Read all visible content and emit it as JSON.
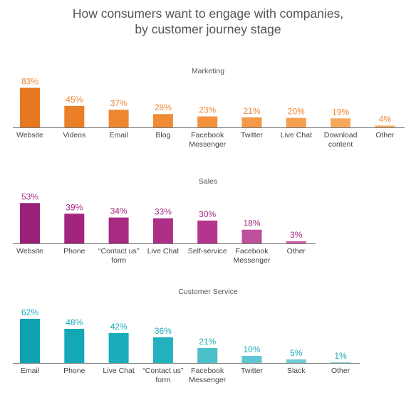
{
  "title_lines": [
    "How consumers want to engage with companies,",
    "by customer journey stage"
  ],
  "chart_data": [
    {
      "type": "bar",
      "title": "Marketing",
      "categories": [
        "Website",
        "Videos",
        "Email",
        "Blog",
        "Facebook\nMessenger",
        "Twitter",
        "Live Chat",
        "Download\ncontent",
        "Other"
      ],
      "values": [
        83,
        45,
        37,
        28,
        23,
        21,
        20,
        19,
        4
      ],
      "value_labels": [
        "83%",
        "45%",
        "37%",
        "28%",
        "23%",
        "21%",
        "20%",
        "19%",
        "4%"
      ],
      "colors": [
        "#e87722",
        "#eb7f28",
        "#ee8530",
        "#f08a37",
        "#f2913f",
        "#f49947",
        "#f6a050",
        "#f7a85b",
        "#f9b26a"
      ],
      "label_color": "#ee8530",
      "xlabel": "",
      "ylabel": "",
      "ylim": [
        0,
        100
      ],
      "grid": false,
      "legend": "none"
    },
    {
      "type": "bar",
      "title": "Sales",
      "categories": [
        "Website",
        "Phone",
        "“Contact us”\nform",
        "Live Chat",
        "Self-service",
        "Facebook\nMessenger",
        "Other"
      ],
      "values": [
        53,
        39,
        34,
        33,
        30,
        18,
        3
      ],
      "value_labels": [
        "53%",
        "39%",
        "34%",
        "33%",
        "30%",
        "18%",
        "3%"
      ],
      "colors": [
        "#9a2179",
        "#a1257e",
        "#a72a83",
        "#ad2f88",
        "#b3358e",
        "#bd4f9b",
        "#c766a8"
      ],
      "label_color": "#a72a83",
      "xlabel": "",
      "ylabel": "",
      "ylim": [
        0,
        100
      ],
      "grid": false,
      "legend": "none"
    },
    {
      "type": "bar",
      "title": "Customer Service",
      "categories": [
        "Email",
        "Phone",
        "Live Chat",
        "“Contact us”\nform",
        "Facebook\nMessenger",
        "Twitter",
        "Slack",
        "Other"
      ],
      "values": [
        62,
        48,
        42,
        36,
        21,
        10,
        5,
        1
      ],
      "value_labels": [
        "62%",
        "48%",
        "42%",
        "36%",
        "21%",
        "10%",
        "5%",
        "1%"
      ],
      "colors": [
        "#0fa3b1",
        "#14a8b6",
        "#1aadba",
        "#22b1bf",
        "#4bbfca",
        "#5ec6d0",
        "#70ccd5",
        "#82d3db"
      ],
      "label_color": "#1aadba",
      "xlabel": "",
      "ylabel": "",
      "ylim": [
        0,
        100
      ],
      "grid": false,
      "legend": "none"
    }
  ]
}
